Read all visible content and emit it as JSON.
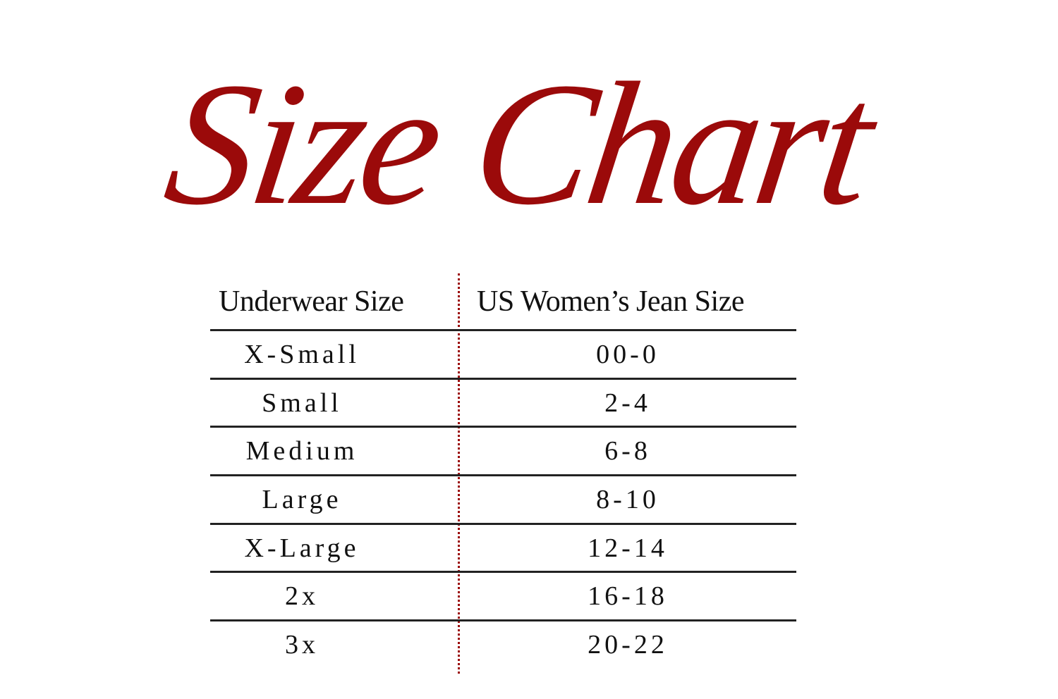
{
  "title": "Size Chart",
  "colors": {
    "accent": "#9b0a0a",
    "text": "#111111",
    "rule": "#222222"
  },
  "table": {
    "headers": [
      "Underwear Size",
      "US Women’s Jean Size"
    ],
    "rows": [
      [
        "X-Small",
        "00-0"
      ],
      [
        "Small",
        "2-4"
      ],
      [
        "Medium",
        "6-8"
      ],
      [
        "Large",
        "8-10"
      ],
      [
        "X-Large",
        "12-14"
      ],
      [
        "2x",
        "16-18"
      ],
      [
        "3x",
        "20-22"
      ]
    ]
  }
}
